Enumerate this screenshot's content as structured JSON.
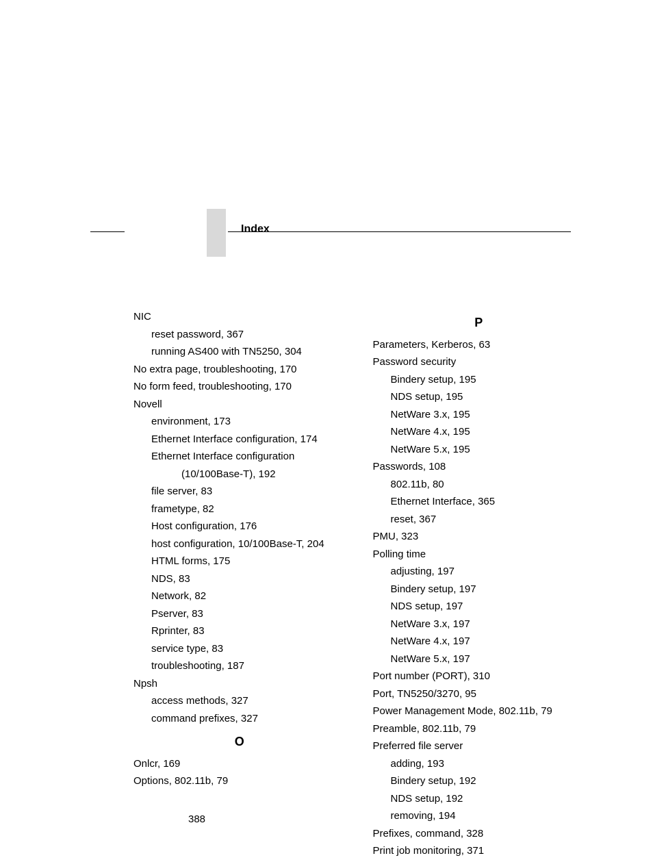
{
  "header": {
    "title": "Index"
  },
  "page_number": "388",
  "left_col": {
    "nic": {
      "head": "NIC",
      "items": [
        "reset password, 367",
        "running AS400 with TN5250, 304"
      ]
    },
    "no_extra_page": "No extra page, troubleshooting, 170",
    "no_form_feed": "No form feed, troubleshooting, 170",
    "novell": {
      "head": "Novell",
      "items": [
        "environment, 173",
        "Ethernet Interface configuration, 174",
        "Ethernet Interface configuration",
        "(10/100Base-T), 192",
        "file server, 83",
        "frametype, 82",
        "Host configuration, 176",
        "host configuration, 10/100Base-T, 204",
        "HTML forms, 175",
        "NDS, 83",
        "Network, 82",
        "Pserver, 83",
        "Rprinter, 83",
        "service type, 83",
        "troubleshooting, 187"
      ]
    },
    "npsh": {
      "head": "Npsh",
      "items": [
        "access methods, 327",
        "command prefixes, 327"
      ]
    },
    "letter_O": "O",
    "onlcr": "Onlcr, 169",
    "options": "Options, 802.11b, 79"
  },
  "right_col": {
    "letter_P": "P",
    "parameters": "Parameters, Kerberos, 63",
    "password_security": {
      "head": "Password security",
      "items": [
        "Bindery setup, 195",
        "NDS setup, 195",
        "NetWare 3.x, 195",
        "NetWare 4.x, 195",
        "NetWare 5.x, 195"
      ]
    },
    "passwords": {
      "head": "Passwords, 108",
      "items": [
        "802.11b, 80",
        "Ethernet Interface, 365",
        "reset, 367"
      ]
    },
    "pmu": "PMU, 323",
    "polling_time": {
      "head": "Polling time",
      "items": [
        "adjusting, 197",
        "Bindery setup, 197",
        "NDS setup, 197",
        "NetWare 3.x, 197",
        "NetWare 4.x, 197",
        "NetWare 5.x, 197"
      ]
    },
    "port_number": "Port number (PORT), 310",
    "port_tn": "Port, TN5250/3270, 95",
    "power_mgmt": "Power Management Mode, 802.11b, 79",
    "preamble": "Preamble, 802.11b, 79",
    "preferred_file_server": {
      "head": "Preferred file server",
      "items": [
        "adding, 193",
        "Bindery setup, 192",
        "NDS setup, 192",
        "removing, 194"
      ]
    },
    "prefixes": "Prefixes, command, 328",
    "print_job": "Print job monitoring, 371"
  }
}
